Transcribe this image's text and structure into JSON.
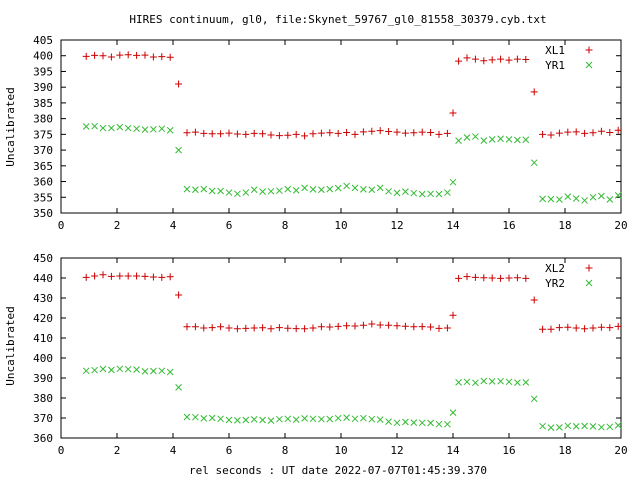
{
  "title": "HIRES continuum, gl0, file:Skynet_59767_gl0_81558_30379.cyb.txt",
  "xlabel": "rel seconds : UT date 2022-07-07T01:45:39.370",
  "colors": {
    "red": "#cc0000",
    "green": "#33bb33",
    "axis": "#000000"
  },
  "chart_data": [
    {
      "type": "scatter",
      "ylabel": "Uncalibrated",
      "xlim": [
        0,
        20
      ],
      "ylim": [
        350,
        405
      ],
      "xticks": [
        0,
        2,
        4,
        6,
        8,
        10,
        12,
        14,
        16,
        18,
        20
      ],
      "yticks": [
        350,
        355,
        360,
        365,
        370,
        375,
        380,
        385,
        390,
        395,
        400,
        405
      ],
      "legend_position": "top-right",
      "series": [
        {
          "name": "XL1",
          "marker": "plus",
          "color": "#cc0000",
          "points": [
            [
              0.9,
              399.8
            ],
            [
              1.2,
              400.1
            ],
            [
              1.5,
              400.0
            ],
            [
              1.8,
              399.6
            ],
            [
              2.1,
              400.2
            ],
            [
              2.4,
              400.3
            ],
            [
              2.7,
              400.1
            ],
            [
              3.0,
              400.2
            ],
            [
              3.3,
              399.6
            ],
            [
              3.6,
              399.7
            ],
            [
              3.9,
              399.5
            ],
            [
              4.2,
              391.0
            ],
            [
              4.5,
              375.5
            ],
            [
              4.8,
              375.7
            ],
            [
              5.1,
              375.3
            ],
            [
              5.4,
              375.2
            ],
            [
              5.7,
              375.2
            ],
            [
              6.0,
              375.4
            ],
            [
              6.3,
              375.1
            ],
            [
              6.6,
              375.0
            ],
            [
              6.9,
              375.3
            ],
            [
              7.2,
              375.2
            ],
            [
              7.5,
              374.8
            ],
            [
              7.8,
              374.6
            ],
            [
              8.1,
              374.7
            ],
            [
              8.4,
              375.0
            ],
            [
              8.7,
              374.5
            ],
            [
              9.0,
              375.2
            ],
            [
              9.3,
              375.4
            ],
            [
              9.6,
              375.5
            ],
            [
              9.9,
              375.3
            ],
            [
              10.2,
              375.6
            ],
            [
              10.5,
              375.0
            ],
            [
              10.8,
              375.8
            ],
            [
              11.1,
              376.0
            ],
            [
              11.4,
              376.2
            ],
            [
              11.7,
              375.9
            ],
            [
              12.0,
              375.7
            ],
            [
              12.3,
              375.4
            ],
            [
              12.6,
              375.5
            ],
            [
              12.9,
              375.7
            ],
            [
              13.2,
              375.6
            ],
            [
              13.5,
              375.0
            ],
            [
              13.8,
              375.3
            ],
            [
              14.0,
              381.8
            ],
            [
              14.2,
              398.3
            ],
            [
              14.5,
              399.3
            ],
            [
              14.8,
              398.9
            ],
            [
              15.1,
              398.4
            ],
            [
              15.4,
              398.7
            ],
            [
              15.7,
              398.9
            ],
            [
              16.0,
              398.6
            ],
            [
              16.3,
              398.9
            ],
            [
              16.6,
              398.8
            ],
            [
              16.9,
              388.5
            ],
            [
              17.2,
              375.0
            ],
            [
              17.5,
              374.8
            ],
            [
              17.8,
              375.4
            ],
            [
              18.1,
              375.7
            ],
            [
              18.4,
              375.8
            ],
            [
              18.7,
              375.3
            ],
            [
              19.0,
              375.5
            ],
            [
              19.3,
              376.0
            ],
            [
              19.6,
              375.6
            ],
            [
              19.9,
              376.3
            ]
          ]
        },
        {
          "name": "YR1",
          "marker": "cross",
          "color": "#33bb33",
          "points": [
            [
              0.9,
              377.5
            ],
            [
              1.2,
              377.6
            ],
            [
              1.5,
              377.0
            ],
            [
              1.8,
              377.0
            ],
            [
              2.1,
              377.3
            ],
            [
              2.4,
              377.0
            ],
            [
              2.7,
              376.8
            ],
            [
              3.0,
              376.5
            ],
            [
              3.3,
              376.6
            ],
            [
              3.6,
              376.8
            ],
            [
              3.9,
              376.3
            ],
            [
              4.2,
              370.0
            ],
            [
              4.5,
              357.6
            ],
            [
              4.8,
              357.4
            ],
            [
              5.1,
              357.6
            ],
            [
              5.4,
              357.0
            ],
            [
              5.7,
              357.0
            ],
            [
              6.0,
              356.5
            ],
            [
              6.3,
              356.1
            ],
            [
              6.6,
              356.5
            ],
            [
              6.9,
              357.4
            ],
            [
              7.2,
              356.8
            ],
            [
              7.5,
              356.9
            ],
            [
              7.8,
              357.1
            ],
            [
              8.1,
              357.6
            ],
            [
              8.4,
              357.2
            ],
            [
              8.7,
              358.0
            ],
            [
              9.0,
              357.5
            ],
            [
              9.3,
              357.4
            ],
            [
              9.6,
              357.6
            ],
            [
              9.9,
              357.9
            ],
            [
              10.2,
              358.6
            ],
            [
              10.5,
              358.0
            ],
            [
              10.8,
              357.5
            ],
            [
              11.1,
              357.4
            ],
            [
              11.4,
              358.0
            ],
            [
              11.7,
              356.9
            ],
            [
              12.0,
              356.4
            ],
            [
              12.3,
              356.8
            ],
            [
              12.6,
              356.3
            ],
            [
              12.9,
              356.0
            ],
            [
              13.2,
              356.1
            ],
            [
              13.5,
              356.0
            ],
            [
              13.8,
              356.5
            ],
            [
              14.0,
              359.8
            ],
            [
              14.2,
              373.0
            ],
            [
              14.5,
              374.0
            ],
            [
              14.8,
              374.3
            ],
            [
              15.1,
              373.0
            ],
            [
              15.4,
              373.4
            ],
            [
              15.7,
              373.6
            ],
            [
              16.0,
              373.4
            ],
            [
              16.3,
              373.2
            ],
            [
              16.6,
              373.3
            ],
            [
              16.9,
              366.0
            ],
            [
              17.2,
              354.5
            ],
            [
              17.5,
              354.4
            ],
            [
              17.8,
              354.3
            ],
            [
              18.1,
              355.2
            ],
            [
              18.4,
              354.6
            ],
            [
              18.7,
              354.0
            ],
            [
              19.0,
              355.0
            ],
            [
              19.3,
              355.4
            ],
            [
              19.6,
              354.3
            ],
            [
              19.9,
              355.6
            ]
          ]
        }
      ]
    },
    {
      "type": "scatter",
      "ylabel": "Uncalibrated",
      "xlim": [
        0,
        20
      ],
      "ylim": [
        360,
        450
      ],
      "xticks": [
        0,
        2,
        4,
        6,
        8,
        10,
        12,
        14,
        16,
        18,
        20
      ],
      "yticks": [
        360,
        370,
        380,
        390,
        400,
        410,
        420,
        430,
        440,
        450
      ],
      "legend_position": "top-right",
      "series": [
        {
          "name": "XL2",
          "marker": "plus",
          "color": "#cc0000",
          "points": [
            [
              0.9,
              440.3
            ],
            [
              1.2,
              441.0
            ],
            [
              1.5,
              441.6
            ],
            [
              1.8,
              440.8
            ],
            [
              2.1,
              441.0
            ],
            [
              2.4,
              441.0
            ],
            [
              2.7,
              441.0
            ],
            [
              3.0,
              440.8
            ],
            [
              3.3,
              440.5
            ],
            [
              3.6,
              440.3
            ],
            [
              3.9,
              440.6
            ],
            [
              4.2,
              431.5
            ],
            [
              4.5,
              415.6
            ],
            [
              4.8,
              415.6
            ],
            [
              5.1,
              415.0
            ],
            [
              5.4,
              415.2
            ],
            [
              5.7,
              415.6
            ],
            [
              6.0,
              415.0
            ],
            [
              6.3,
              414.6
            ],
            [
              6.6,
              414.8
            ],
            [
              6.9,
              415.0
            ],
            [
              7.2,
              415.1
            ],
            [
              7.5,
              414.6
            ],
            [
              7.8,
              415.2
            ],
            [
              8.1,
              414.9
            ],
            [
              8.4,
              414.7
            ],
            [
              8.7,
              414.6
            ],
            [
              9.0,
              415.0
            ],
            [
              9.3,
              415.6
            ],
            [
              9.6,
              415.5
            ],
            [
              9.9,
              415.8
            ],
            [
              10.2,
              416.1
            ],
            [
              10.5,
              416.0
            ],
            [
              10.8,
              416.4
            ],
            [
              11.1,
              417.0
            ],
            [
              11.4,
              416.5
            ],
            [
              11.7,
              416.4
            ],
            [
              12.0,
              416.1
            ],
            [
              12.3,
              415.9
            ],
            [
              12.6,
              415.6
            ],
            [
              12.9,
              415.7
            ],
            [
              13.2,
              415.5
            ],
            [
              13.5,
              414.8
            ],
            [
              13.8,
              415.0
            ],
            [
              14.0,
              421.4
            ],
            [
              14.2,
              439.8
            ],
            [
              14.5,
              440.7
            ],
            [
              14.8,
              440.3
            ],
            [
              15.1,
              440.1
            ],
            [
              15.4,
              440.0
            ],
            [
              15.7,
              439.8
            ],
            [
              16.0,
              440.0
            ],
            [
              16.3,
              440.1
            ],
            [
              16.6,
              439.8
            ],
            [
              16.9,
              429.0
            ],
            [
              17.2,
              414.4
            ],
            [
              17.5,
              414.4
            ],
            [
              17.8,
              415.2
            ],
            [
              18.1,
              415.4
            ],
            [
              18.4,
              415.0
            ],
            [
              18.7,
              414.6
            ],
            [
              19.0,
              415.0
            ],
            [
              19.3,
              415.4
            ],
            [
              19.6,
              415.2
            ],
            [
              19.9,
              415.8
            ]
          ]
        },
        {
          "name": "YR2",
          "marker": "cross",
          "color": "#33bb33",
          "points": [
            [
              0.9,
              393.6
            ],
            [
              1.2,
              393.9
            ],
            [
              1.5,
              394.5
            ],
            [
              1.8,
              394.0
            ],
            [
              2.1,
              394.6
            ],
            [
              2.4,
              394.4
            ],
            [
              2.7,
              394.2
            ],
            [
              3.0,
              393.3
            ],
            [
              3.3,
              393.5
            ],
            [
              3.6,
              393.6
            ],
            [
              3.9,
              393.0
            ],
            [
              4.2,
              385.3
            ],
            [
              4.5,
              370.5
            ],
            [
              4.8,
              370.4
            ],
            [
              5.1,
              369.8
            ],
            [
              5.4,
              370.0
            ],
            [
              5.7,
              369.6
            ],
            [
              6.0,
              369.0
            ],
            [
              6.3,
              368.8
            ],
            [
              6.6,
              369.0
            ],
            [
              6.9,
              369.3
            ],
            [
              7.2,
              369.0
            ],
            [
              7.5,
              368.7
            ],
            [
              7.8,
              369.4
            ],
            [
              8.1,
              369.6
            ],
            [
              8.4,
              369.2
            ],
            [
              8.7,
              369.8
            ],
            [
              9.0,
              369.6
            ],
            [
              9.3,
              369.4
            ],
            [
              9.6,
              369.5
            ],
            [
              9.9,
              369.9
            ],
            [
              10.2,
              370.2
            ],
            [
              10.5,
              369.6
            ],
            [
              10.8,
              369.9
            ],
            [
              11.1,
              369.4
            ],
            [
              11.4,
              369.2
            ],
            [
              11.7,
              368.2
            ],
            [
              12.0,
              367.6
            ],
            [
              12.3,
              368.0
            ],
            [
              12.6,
              367.7
            ],
            [
              12.9,
              367.6
            ],
            [
              13.2,
              367.5
            ],
            [
              13.5,
              366.9
            ],
            [
              13.8,
              366.9
            ],
            [
              14.0,
              372.7
            ],
            [
              14.2,
              387.8
            ],
            [
              14.5,
              388.1
            ],
            [
              14.8,
              387.6
            ],
            [
              15.1,
              388.5
            ],
            [
              15.4,
              388.3
            ],
            [
              15.7,
              388.4
            ],
            [
              16.0,
              388.1
            ],
            [
              16.3,
              387.7
            ],
            [
              16.6,
              387.8
            ],
            [
              16.9,
              379.6
            ],
            [
              17.2,
              365.9
            ],
            [
              17.5,
              365.2
            ],
            [
              17.8,
              365.3
            ],
            [
              18.1,
              366.1
            ],
            [
              18.4,
              365.8
            ],
            [
              18.7,
              366.0
            ],
            [
              19.0,
              365.8
            ],
            [
              19.3,
              365.4
            ],
            [
              19.6,
              365.6
            ],
            [
              19.9,
              366.3
            ]
          ]
        }
      ]
    }
  ]
}
